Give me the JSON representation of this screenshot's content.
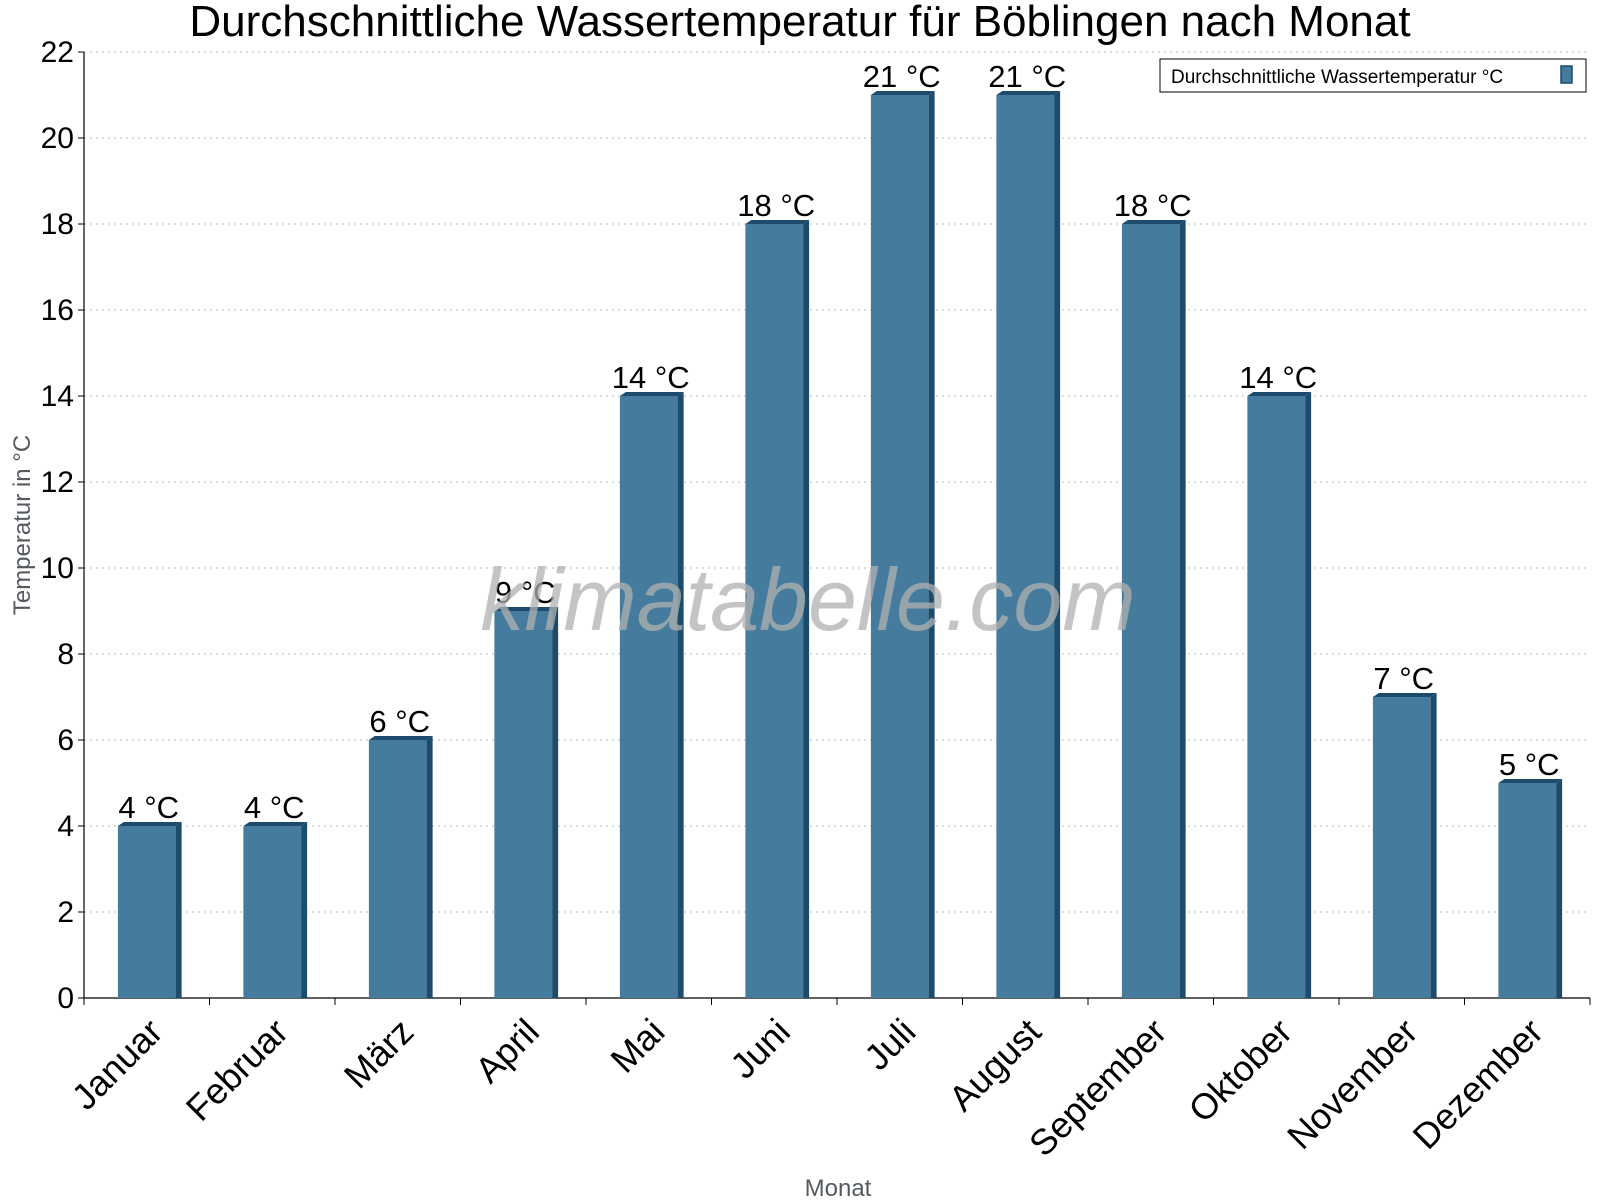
{
  "chart_data": {
    "type": "bar",
    "title": "Durchschnittliche Wassertemperatur für Böblingen nach Monat",
    "xlabel": "Monat",
    "ylabel": "Temperatur in °C",
    "ylim": [
      0,
      22
    ],
    "yticks": [
      0,
      2,
      4,
      6,
      8,
      10,
      12,
      14,
      16,
      18,
      20,
      22
    ],
    "grid": true,
    "legend_position": "top-right",
    "categories": [
      "Januar",
      "Februar",
      "März",
      "April",
      "Mai",
      "Juni",
      "Juli",
      "August",
      "September",
      "Oktober",
      "November",
      "Dezember"
    ],
    "series": [
      {
        "name": "Durchschnittliche Wassertemperatur °C",
        "values": [
          4,
          4,
          6,
          9,
          14,
          18,
          21,
          21,
          18,
          14,
          7,
          5
        ],
        "data_labels": [
          "4 °C",
          "4 °C",
          "6 °C",
          "9 °C",
          "14 °C",
          "18 °C",
          "21 °C",
          "21 °C",
          "18 °C",
          "14 °C",
          "7 °C",
          "5 °C"
        ],
        "color": "#457b9d",
        "shade_color": "#1d4b6b"
      }
    ]
  },
  "watermark": "klimatabelle.com"
}
